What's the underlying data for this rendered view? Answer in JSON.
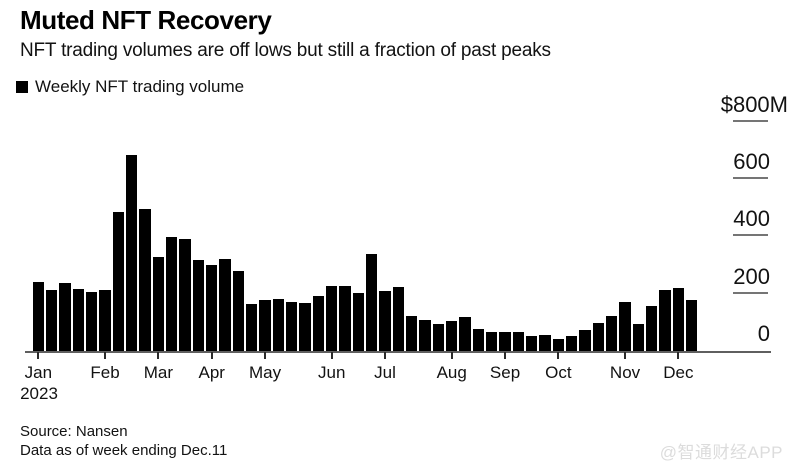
{
  "page": {
    "background": "#ffffff"
  },
  "header": {
    "title": "Muted NFT Recovery",
    "subtitle": "NFT trading volumes are off lows but still a fraction of past peaks"
  },
  "legend": {
    "marker_color": "#000000",
    "label": "Weekly NFT trading volume"
  },
  "chart_data": {
    "type": "bar",
    "title": "Muted NFT Recovery",
    "series_name": "Weekly NFT trading volume",
    "unit": "USD millions",
    "bar_color": "#000000",
    "grid": false,
    "legend_position": "top-left",
    "axis_side": "right",
    "ylim": [
      0,
      800
    ],
    "yticks": [
      {
        "label": "0",
        "value": 0
      },
      {
        "label": "200",
        "value": 200
      },
      {
        "label": "400",
        "value": 400
      },
      {
        "label": "600",
        "value": 600
      },
      {
        "label": "$800M",
        "value": 800
      }
    ],
    "x_label_year": "2023",
    "months": [
      {
        "label": "Jan",
        "start_week": 0
      },
      {
        "label": "Feb",
        "start_week": 5
      },
      {
        "label": "Mar",
        "start_week": 9
      },
      {
        "label": "Apr",
        "start_week": 13
      },
      {
        "label": "May",
        "start_week": 17
      },
      {
        "label": "Jun",
        "start_week": 22
      },
      {
        "label": "Jul",
        "start_week": 26
      },
      {
        "label": "Aug",
        "start_week": 31
      },
      {
        "label": "Sep",
        "start_week": 35
      },
      {
        "label": "Oct",
        "start_week": 39
      },
      {
        "label": "Nov",
        "start_week": 44
      },
      {
        "label": "Dec",
        "start_week": 48
      }
    ],
    "values": [
      243,
      217,
      239,
      219,
      210,
      215,
      489,
      686,
      497,
      330,
      400,
      394,
      320,
      305,
      323,
      281,
      167,
      181,
      186,
      176,
      172,
      194,
      231,
      231,
      205,
      343,
      211,
      225,
      126,
      112,
      96,
      107,
      123,
      79,
      68,
      68,
      71,
      56,
      60,
      47,
      56,
      77,
      100,
      126,
      174,
      98,
      162,
      217,
      222,
      180
    ]
  },
  "footer": {
    "source": "Source: Nansen",
    "note": "Data as of week ending Dec.11"
  },
  "watermark": {
    "text": "@智通财经APP"
  }
}
